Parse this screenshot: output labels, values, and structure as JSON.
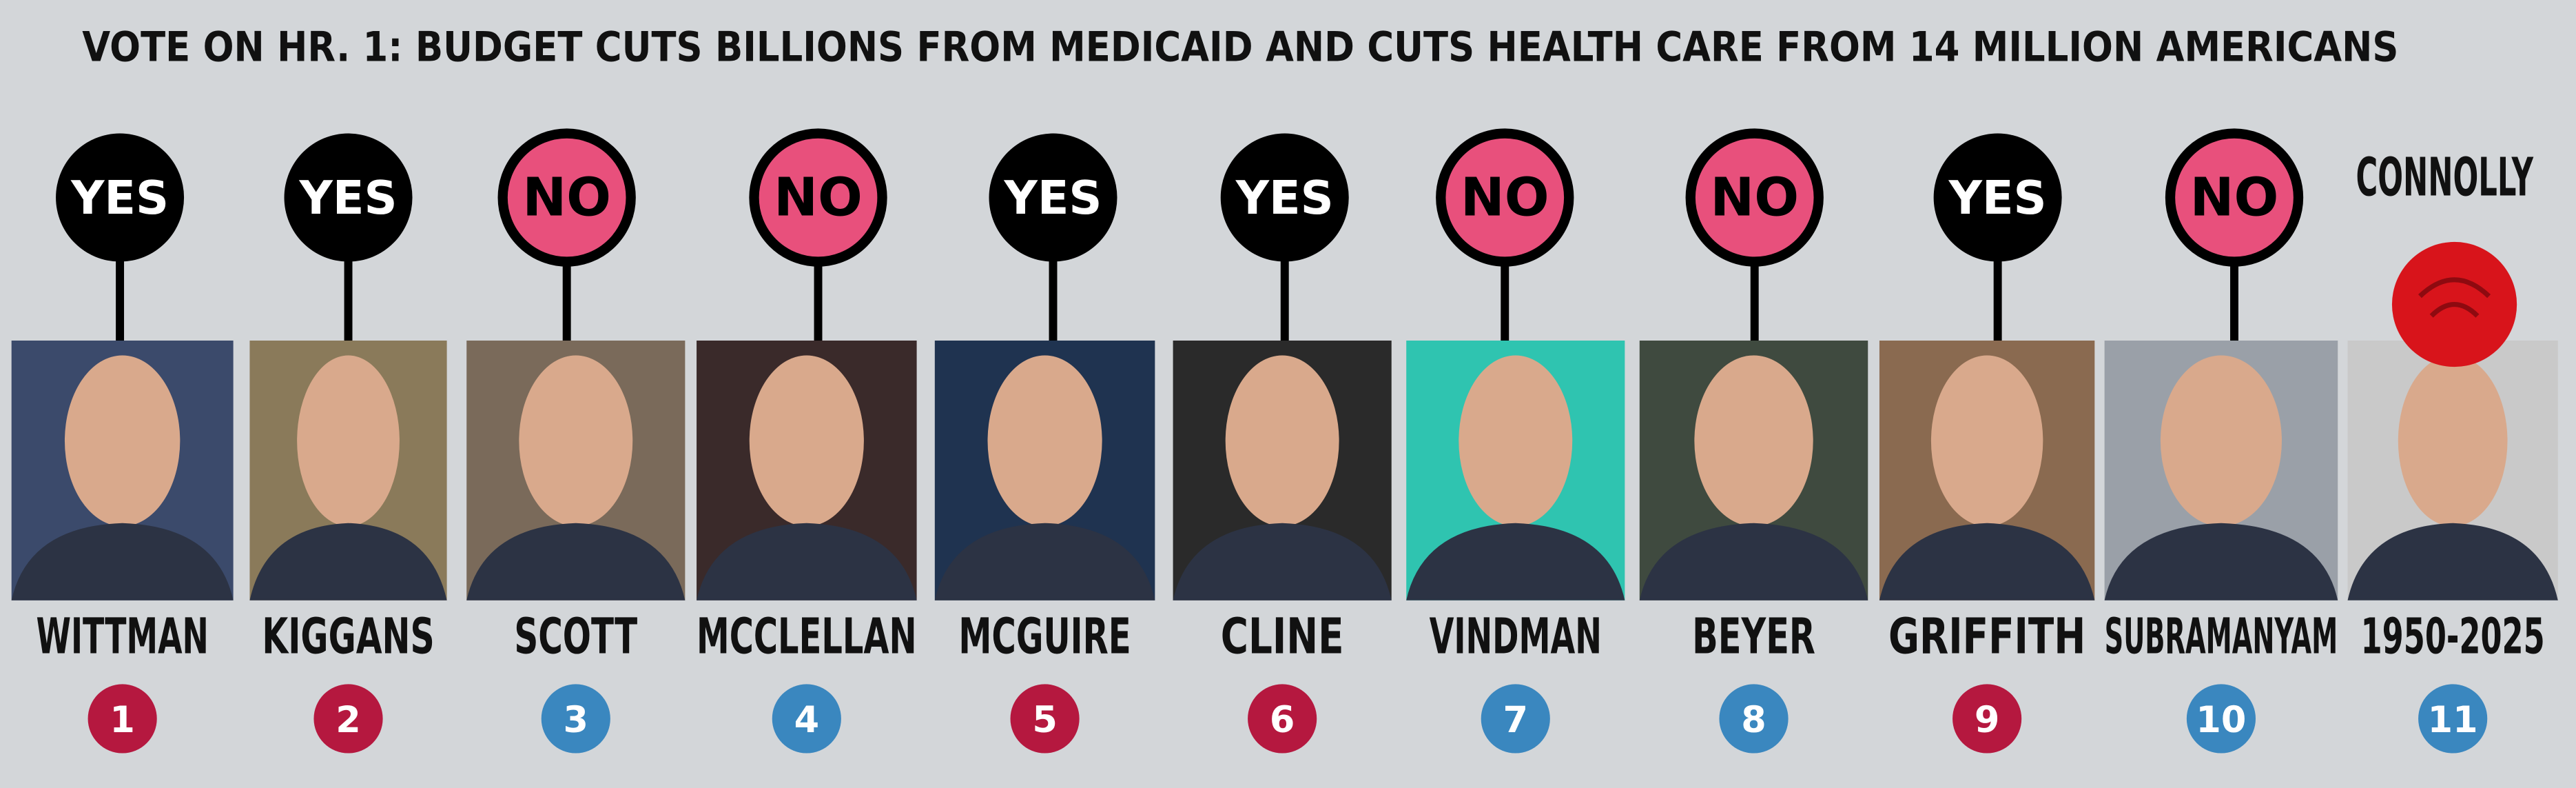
{
  "header": {
    "title": "VOTE ON HR. 1: BUDGET CUTS BILLIONS FROM MEDICAID AND CUTS HEALTH CARE FROM 14 MILLION AMERICANS"
  },
  "members": [
    {
      "vote": "YES",
      "name": "WITTMAN",
      "district": "1",
      "color": "#b5183f"
    },
    {
      "vote": "YES",
      "name": "KIGGANS",
      "district": "2",
      "color": "#b5183f"
    },
    {
      "vote": "NO",
      "name": "SCOTT",
      "district": "3",
      "color": "#3a87bf"
    },
    {
      "vote": "NO",
      "name": "MCCLELLAN",
      "district": "4",
      "color": "#3a87bf"
    },
    {
      "vote": "YES",
      "name": "MCGUIRE",
      "district": "5",
      "color": "#b5183f"
    },
    {
      "vote": "YES",
      "name": "CLINE",
      "district": "6",
      "color": "#b5183f"
    },
    {
      "vote": "NO",
      "name": "VINDMAN",
      "district": "7",
      "color": "#3a87bf"
    },
    {
      "vote": "NO",
      "name": "BEYER",
      "district": "8",
      "color": "#3a87bf"
    },
    {
      "vote": "YES",
      "name": "GRIFFITH",
      "district": "9",
      "color": "#b5183f"
    },
    {
      "vote": "NO",
      "name": "SUBRAMANYAM",
      "district": "10",
      "color": "#3a87bf"
    },
    {
      "name": "CONNOLLY",
      "years": "1950-2025",
      "district": "11",
      "color": "#3a87bf"
    }
  ]
}
